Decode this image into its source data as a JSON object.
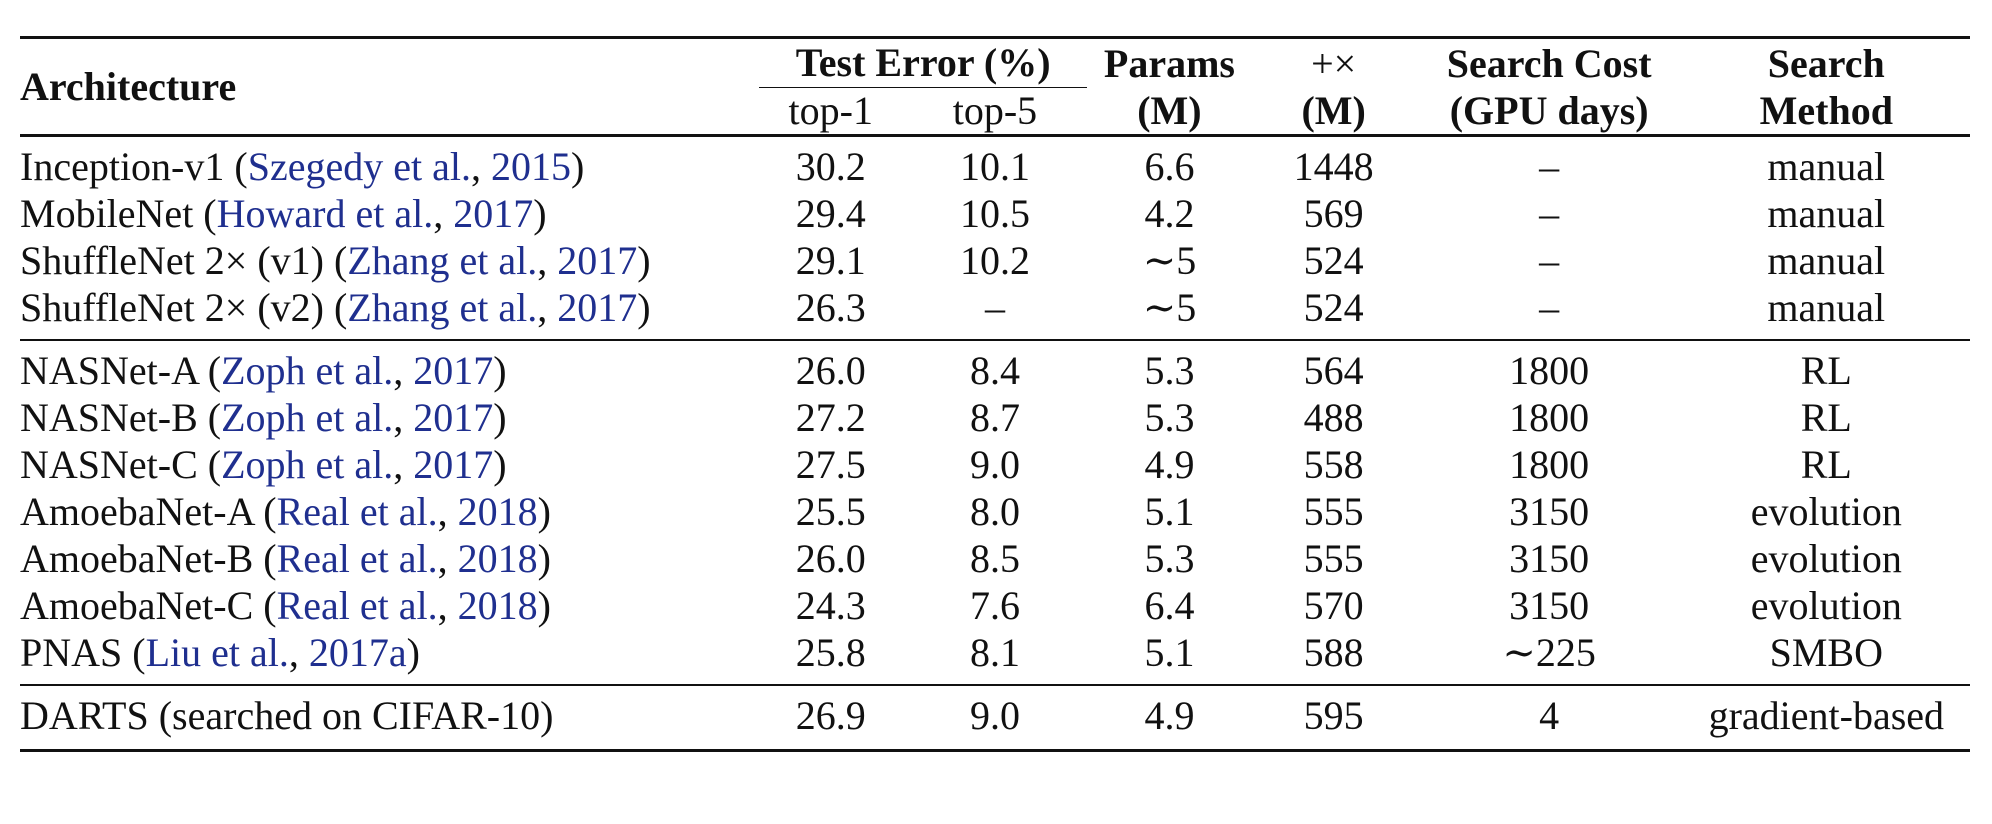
{
  "header": {
    "architecture": "Architecture",
    "test_error": "Test Error (%)",
    "top1": "top-1",
    "top5": "top-5",
    "params_line1": "Params",
    "params_line2": "(M)",
    "mult_line1": "+×",
    "mult_line2": "(M)",
    "cost_line1": "Search Cost",
    "cost_line2": "(GPU days)",
    "method_line1": "Search",
    "method_line2": "Method"
  },
  "groups": [
    {
      "rows": [
        {
          "name": "Inception-v1 (",
          "cite_author": "Szegedy et al.",
          "cite_sep": ", ",
          "cite_year": "2015",
          "close": ")",
          "top1": "30.2",
          "top5": "10.1",
          "params": "6.6",
          "mult": "1448",
          "cost": "–",
          "method": "manual"
        },
        {
          "name": "MobileNet (",
          "cite_author": "Howard et al.",
          "cite_sep": ", ",
          "cite_year": "2017",
          "close": ")",
          "top1": "29.4",
          "top5": "10.5",
          "params": "4.2",
          "mult": "569",
          "cost": "–",
          "method": "manual"
        },
        {
          "name": "ShuffleNet 2× (v1) (",
          "cite_author": "Zhang et al.",
          "cite_sep": ", ",
          "cite_year": "2017",
          "close": ")",
          "top1": "29.1",
          "top5": "10.2",
          "params": "∼5",
          "mult": "524",
          "cost": "–",
          "method": "manual"
        },
        {
          "name": "ShuffleNet 2× (v2) (",
          "cite_author": "Zhang et al.",
          "cite_sep": ", ",
          "cite_year": "2017",
          "close": ")",
          "top1": "26.3",
          "top5": "–",
          "params": "∼5",
          "mult": "524",
          "cost": "–",
          "method": "manual"
        }
      ]
    },
    {
      "rows": [
        {
          "name": "NASNet-A (",
          "cite_author": "Zoph et al.",
          "cite_sep": ", ",
          "cite_year": "2017",
          "close": ")",
          "top1": "26.0",
          "top5": "8.4",
          "params": "5.3",
          "mult": "564",
          "cost": "1800",
          "method": "RL"
        },
        {
          "name": "NASNet-B (",
          "cite_author": "Zoph et al.",
          "cite_sep": ", ",
          "cite_year": "2017",
          "close": ")",
          "top1": "27.2",
          "top5": "8.7",
          "params": "5.3",
          "mult": "488",
          "cost": "1800",
          "method": "RL"
        },
        {
          "name": "NASNet-C (",
          "cite_author": "Zoph et al.",
          "cite_sep": ", ",
          "cite_year": "2017",
          "close": ")",
          "top1": "27.5",
          "top5": "9.0",
          "params": "4.9",
          "mult": "558",
          "cost": "1800",
          "method": "RL"
        },
        {
          "name": "AmoebaNet-A (",
          "cite_author": "Real et al.",
          "cite_sep": ", ",
          "cite_year": "2018",
          "close": ")",
          "top1": "25.5",
          "top5": "8.0",
          "params": "5.1",
          "mult": "555",
          "cost": "3150",
          "method": "evolution"
        },
        {
          "name": "AmoebaNet-B (",
          "cite_author": "Real et al.",
          "cite_sep": ", ",
          "cite_year": "2018",
          "close": ")",
          "top1": "26.0",
          "top5": "8.5",
          "params": "5.3",
          "mult": "555",
          "cost": "3150",
          "method": "evolution"
        },
        {
          "name": "AmoebaNet-C (",
          "cite_author": "Real et al.",
          "cite_sep": ", ",
          "cite_year": "2018",
          "close": ")",
          "top1": "24.3",
          "top5": "7.6",
          "params": "6.4",
          "mult": "570",
          "cost": "3150",
          "method": "evolution"
        },
        {
          "name": "PNAS (",
          "cite_author": "Liu et al.",
          "cite_sep": ", ",
          "cite_year": "2017a",
          "close": ")",
          "top1": "25.8",
          "top5": "8.1",
          "params": "5.1",
          "mult": "588",
          "cost": "∼225",
          "method": "SMBO"
        }
      ]
    },
    {
      "rows": [
        {
          "name": "DARTS (searched on CIFAR-10)",
          "cite_author": "",
          "cite_sep": "",
          "cite_year": "",
          "close": "",
          "top1": "26.9",
          "top5": "9.0",
          "params": "4.9",
          "mult": "595",
          "cost": "4",
          "method": "gradient-based"
        }
      ]
    }
  ]
}
